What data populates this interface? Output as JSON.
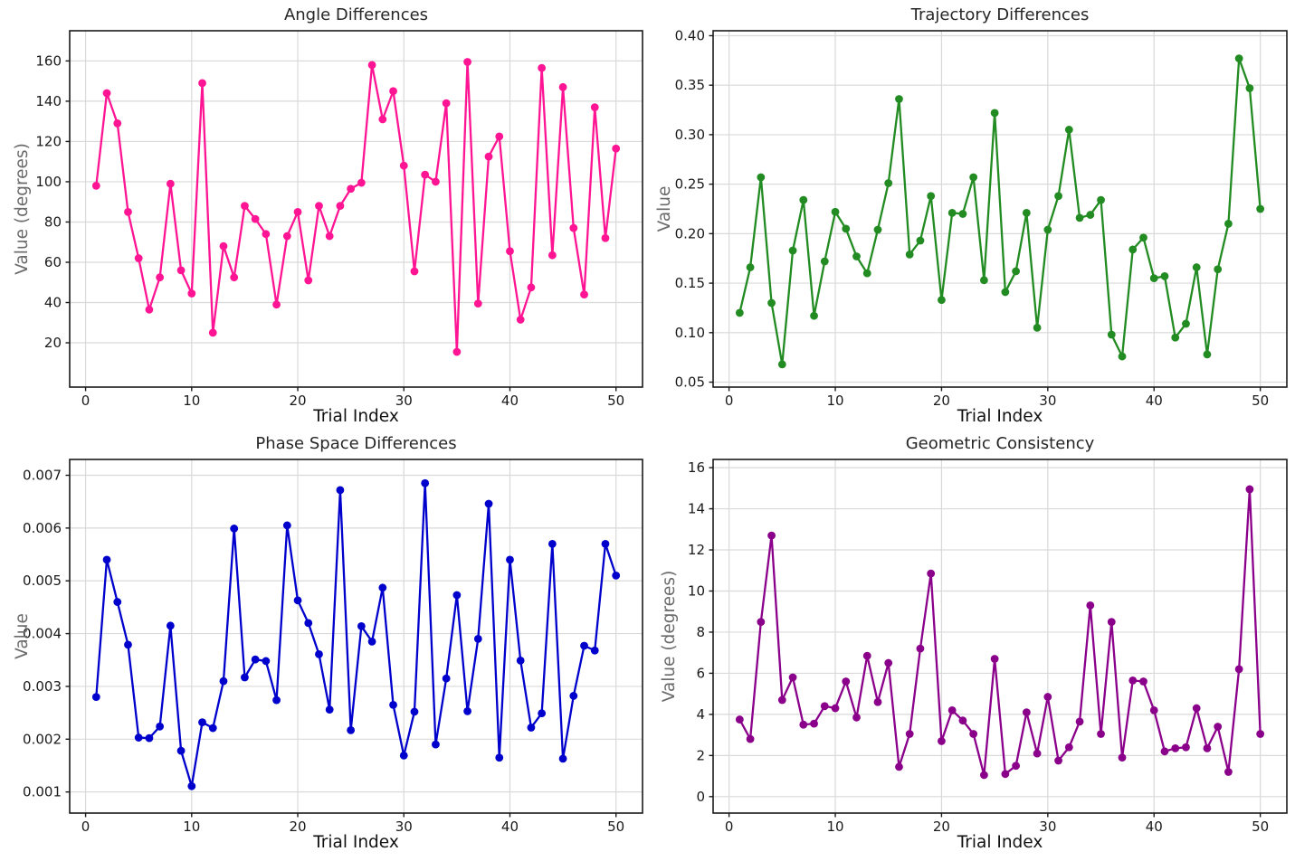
{
  "figure": {
    "background": "#ffffff",
    "grid_color": "#d9d9d9",
    "axis_color": "#1a1a1a",
    "tick_label_color": "#1a1a1a",
    "title_color": "#262626",
    "xlabel_color": "#111111",
    "ylabel_color": "#6a6a6a"
  },
  "chart_data": [
    {
      "type": "line",
      "title": "Angle Differences",
      "xlabel": "Trial Index",
      "ylabel": "Value (degrees)",
      "color": "#FF1493",
      "grid": true,
      "legend": null,
      "marker": "circle",
      "xlim": [
        -1.5,
        52.5
      ],
      "ylim": [
        -2,
        175
      ],
      "xticks": [
        0,
        10,
        20,
        30,
        40,
        50
      ],
      "xtick_labels": [
        "0",
        "10",
        "20",
        "30",
        "40",
        "50"
      ],
      "yticks": [
        20,
        40,
        60,
        80,
        100,
        120,
        140,
        160
      ],
      "ytick_labels": [
        "20",
        "40",
        "60",
        "80",
        "100",
        "120",
        "140",
        "160"
      ],
      "x": [
        1,
        2,
        3,
        4,
        5,
        6,
        7,
        8,
        9,
        10,
        11,
        12,
        13,
        14,
        15,
        16,
        17,
        18,
        19,
        20,
        21,
        22,
        23,
        24,
        25,
        26,
        27,
        28,
        29,
        30,
        31,
        32,
        33,
        34,
        35,
        36,
        37,
        38,
        39,
        40,
        41,
        42,
        43,
        44,
        45,
        46,
        47,
        48,
        49,
        50
      ],
      "values": [
        98,
        144,
        129,
        85,
        62,
        36.5,
        52.5,
        99,
        56,
        44.5,
        149,
        25,
        68,
        52.5,
        88,
        81.5,
        74,
        39,
        73,
        85,
        51,
        88,
        73,
        88,
        96.5,
        99.5,
        158,
        131,
        145,
        108,
        55.5,
        103.5,
        100,
        139,
        15.5,
        159.5,
        39.5,
        112.5,
        122.5,
        65.5,
        31.5,
        47.5,
        156.5,
        63.5,
        147,
        77,
        44,
        137,
        72,
        116.5
      ]
    },
    {
      "type": "line",
      "title": "Trajectory Differences",
      "xlabel": "Trial Index",
      "ylabel": "Value",
      "color": "#228B22",
      "grid": true,
      "legend": null,
      "marker": "circle",
      "xlim": [
        -1.5,
        52.5
      ],
      "ylim": [
        0.045,
        0.405
      ],
      "xticks": [
        0,
        10,
        20,
        30,
        40,
        50
      ],
      "xtick_labels": [
        "0",
        "10",
        "20",
        "30",
        "40",
        "50"
      ],
      "yticks": [
        0.05,
        0.1,
        0.15,
        0.2,
        0.25,
        0.3,
        0.35,
        0.4
      ],
      "ytick_labels": [
        "0.05",
        "0.10",
        "0.15",
        "0.20",
        "0.25",
        "0.30",
        "0.35",
        "0.40"
      ],
      "x": [
        1,
        2,
        3,
        4,
        5,
        6,
        7,
        8,
        9,
        10,
        11,
        12,
        13,
        14,
        15,
        16,
        17,
        18,
        19,
        20,
        21,
        22,
        23,
        24,
        25,
        26,
        27,
        28,
        29,
        30,
        31,
        32,
        33,
        34,
        35,
        36,
        37,
        38,
        39,
        40,
        41,
        42,
        43,
        44,
        45,
        46,
        47,
        48,
        49,
        50
      ],
      "values": [
        0.12,
        0.166,
        0.257,
        0.13,
        0.068,
        0.183,
        0.234,
        0.117,
        0.172,
        0.222,
        0.205,
        0.177,
        0.16,
        0.204,
        0.251,
        0.336,
        0.179,
        0.193,
        0.238,
        0.133,
        0.221,
        0.22,
        0.257,
        0.153,
        0.322,
        0.141,
        0.162,
        0.221,
        0.105,
        0.204,
        0.238,
        0.305,
        0.216,
        0.219,
        0.234,
        0.098,
        0.076,
        0.184,
        0.196,
        0.155,
        0.157,
        0.095,
        0.109,
        0.166,
        0.078,
        0.164,
        0.21,
        0.377,
        0.347,
        0.225
      ]
    },
    {
      "type": "line",
      "title": "Phase Space Differences",
      "xlabel": "Trial Index",
      "ylabel": "Value",
      "color": "#0000CD",
      "grid": true,
      "legend": null,
      "marker": "circle",
      "xlim": [
        -1.5,
        52.5
      ],
      "ylim": [
        0.0006,
        0.0073
      ],
      "xticks": [
        0,
        10,
        20,
        30,
        40,
        50
      ],
      "xtick_labels": [
        "0",
        "10",
        "20",
        "30",
        "40",
        "50"
      ],
      "yticks": [
        0.001,
        0.002,
        0.003,
        0.004,
        0.005,
        0.006,
        0.007
      ],
      "ytick_labels": [
        "0.001",
        "0.002",
        "0.003",
        "0.004",
        "0.005",
        "0.006",
        "0.007"
      ],
      "x": [
        1,
        2,
        3,
        4,
        5,
        6,
        7,
        8,
        9,
        10,
        11,
        12,
        13,
        14,
        15,
        16,
        17,
        18,
        19,
        20,
        21,
        22,
        23,
        24,
        25,
        26,
        27,
        28,
        29,
        30,
        31,
        32,
        33,
        34,
        35,
        36,
        37,
        38,
        39,
        40,
        41,
        42,
        43,
        44,
        45,
        46,
        47,
        48,
        49,
        50
      ],
      "values": [
        0.0028,
        0.0054,
        0.0046,
        0.00379,
        0.00203,
        0.00202,
        0.00224,
        0.00415,
        0.00178,
        0.00111,
        0.00232,
        0.00221,
        0.0031,
        0.00599,
        0.00317,
        0.00351,
        0.00348,
        0.00274,
        0.00605,
        0.00463,
        0.0042,
        0.00361,
        0.00256,
        0.00672,
        0.00217,
        0.00414,
        0.00385,
        0.00487,
        0.00265,
        0.00169,
        0.00252,
        0.00685,
        0.0019,
        0.00315,
        0.00473,
        0.00253,
        0.0039,
        0.00646,
        0.00165,
        0.0054,
        0.00349,
        0.00222,
        0.00249,
        0.0057,
        0.00163,
        0.00282,
        0.00377,
        0.00368,
        0.0057,
        0.0051
      ]
    },
    {
      "type": "line",
      "title": "Geometric Consistency",
      "xlabel": "Trial Index",
      "ylabel": "Value (degrees)",
      "color": "#8B008B",
      "grid": true,
      "legend": null,
      "marker": "circle",
      "xlim": [
        -1.5,
        52.5
      ],
      "ylim": [
        -0.8,
        16.4
      ],
      "xticks": [
        0,
        10,
        20,
        30,
        40,
        50
      ],
      "xtick_labels": [
        "0",
        "10",
        "20",
        "30",
        "40",
        "50"
      ],
      "yticks": [
        0,
        2,
        4,
        6,
        8,
        10,
        12,
        14,
        16
      ],
      "ytick_labels": [
        "0",
        "2",
        "4",
        "6",
        "8",
        "10",
        "12",
        "14",
        "16"
      ],
      "x": [
        1,
        2,
        3,
        4,
        5,
        6,
        7,
        8,
        9,
        10,
        11,
        12,
        13,
        14,
        15,
        16,
        17,
        18,
        19,
        20,
        21,
        22,
        23,
        24,
        25,
        26,
        27,
        28,
        29,
        30,
        31,
        32,
        33,
        34,
        35,
        36,
        37,
        38,
        39,
        40,
        41,
        42,
        43,
        44,
        45,
        46,
        47,
        48,
        49,
        50
      ],
      "values": [
        3.75,
        2.8,
        8.5,
        12.7,
        4.7,
        5.8,
        3.5,
        3.55,
        4.4,
        4.3,
        5.6,
        3.85,
        6.85,
        4.6,
        6.5,
        1.45,
        3.05,
        7.2,
        10.85,
        2.7,
        4.2,
        3.7,
        3.05,
        1.05,
        6.7,
        1.1,
        1.5,
        4.1,
        2.1,
        4.85,
        1.75,
        2.4,
        3.65,
        9.3,
        3.05,
        8.5,
        1.9,
        5.65,
        5.6,
        4.2,
        2.2,
        2.35,
        2.4,
        4.3,
        2.35,
        3.4,
        1.2,
        6.2,
        14.95,
        3.05
      ]
    }
  ]
}
